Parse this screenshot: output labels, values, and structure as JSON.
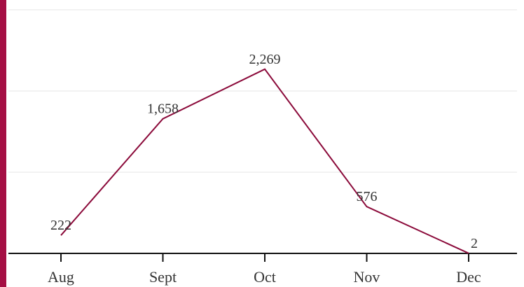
{
  "chart_data": {
    "type": "line",
    "title": "",
    "xlabel": "",
    "ylabel": "",
    "categories": [
      "Aug",
      "Sept",
      "Oct",
      "Nov",
      "Dec"
    ],
    "series": [
      {
        "values": [
          222,
          1658,
          2269,
          576,
          2
        ],
        "value_labels": [
          "222",
          "1,658",
          "2,269",
          "576",
          "2"
        ]
      }
    ],
    "ylim": [
      0,
      3000
    ],
    "grid": true,
    "legend": "none",
    "colors": {
      "line": "#8b0a3a",
      "accent_bar": "#a50f44"
    }
  }
}
